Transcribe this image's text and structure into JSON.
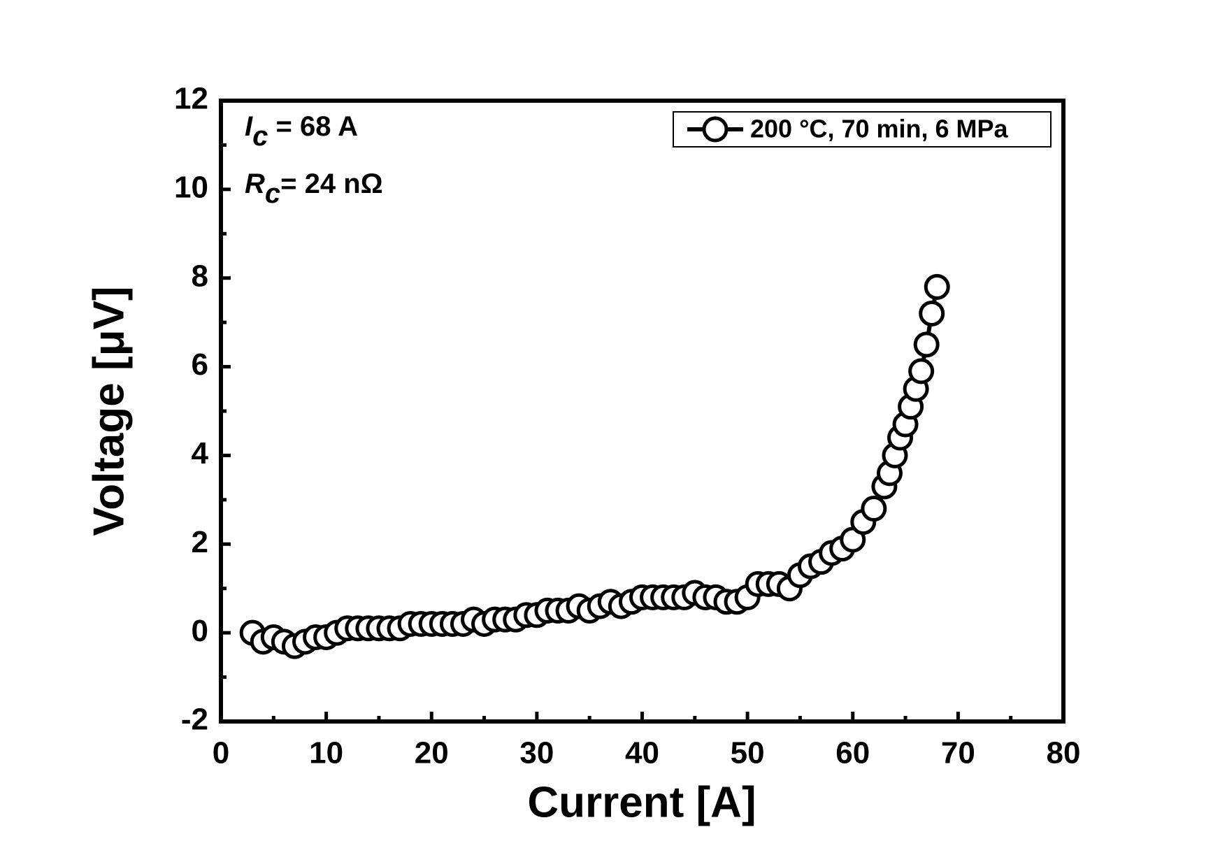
{
  "chart_data": {
    "type": "line",
    "x_label": "Current [A]",
    "y_label": "Voltage [μV]",
    "xlim": [
      0,
      80
    ],
    "ylim": [
      -2,
      12
    ],
    "xticks": [
      0,
      10,
      20,
      30,
      40,
      50,
      60,
      70,
      80
    ],
    "yticks": [
      -2,
      0,
      2,
      4,
      6,
      8,
      10,
      12
    ],
    "legend_position": "top-right",
    "annotations": [
      {
        "symbol": "I",
        "subscript": "c",
        "text": " = 68 A"
      },
      {
        "symbol": "R",
        "subscript": "c",
        "text": "= 24 nΩ"
      }
    ],
    "series": [
      {
        "name": "200 °C, 70 min, 6 MPa",
        "color": "#000000",
        "marker": "open-circle",
        "x": [
          3,
          4,
          5,
          6,
          7,
          8,
          9,
          10,
          11,
          12,
          13,
          14,
          15,
          16,
          17,
          18,
          19,
          20,
          21,
          22,
          23,
          24,
          25,
          26,
          27,
          28,
          29,
          30,
          31,
          32,
          33,
          34,
          35,
          36,
          37,
          38,
          39,
          40,
          41,
          42,
          43,
          44,
          45,
          46,
          47,
          48,
          49,
          50,
          51,
          52,
          53,
          54,
          55,
          56,
          57,
          58,
          59,
          60,
          61,
          62,
          63,
          63.5,
          64,
          64.5,
          65,
          65.5,
          66,
          66.5,
          67,
          67.5,
          68
        ],
        "values": [
          0,
          -0.2,
          -0.1,
          -0.2,
          -0.3,
          -0.2,
          -0.1,
          -0.1,
          0,
          0.1,
          0.1,
          0.1,
          0.1,
          0.1,
          0.1,
          0.2,
          0.2,
          0.2,
          0.2,
          0.2,
          0.2,
          0.3,
          0.2,
          0.3,
          0.3,
          0.3,
          0.4,
          0.4,
          0.5,
          0.5,
          0.5,
          0.6,
          0.5,
          0.6,
          0.7,
          0.6,
          0.7,
          0.8,
          0.8,
          0.8,
          0.8,
          0.8,
          0.9,
          0.8,
          0.8,
          0.7,
          0.7,
          0.8,
          1.1,
          1.1,
          1.1,
          1.0,
          1.3,
          1.5,
          1.6,
          1.8,
          1.9,
          2.1,
          2.5,
          2.8,
          3.3,
          3.6,
          4.0,
          4.4,
          4.7,
          5.1,
          5.5,
          5.9,
          6.5,
          7.2,
          7.8
        ]
      }
    ]
  }
}
